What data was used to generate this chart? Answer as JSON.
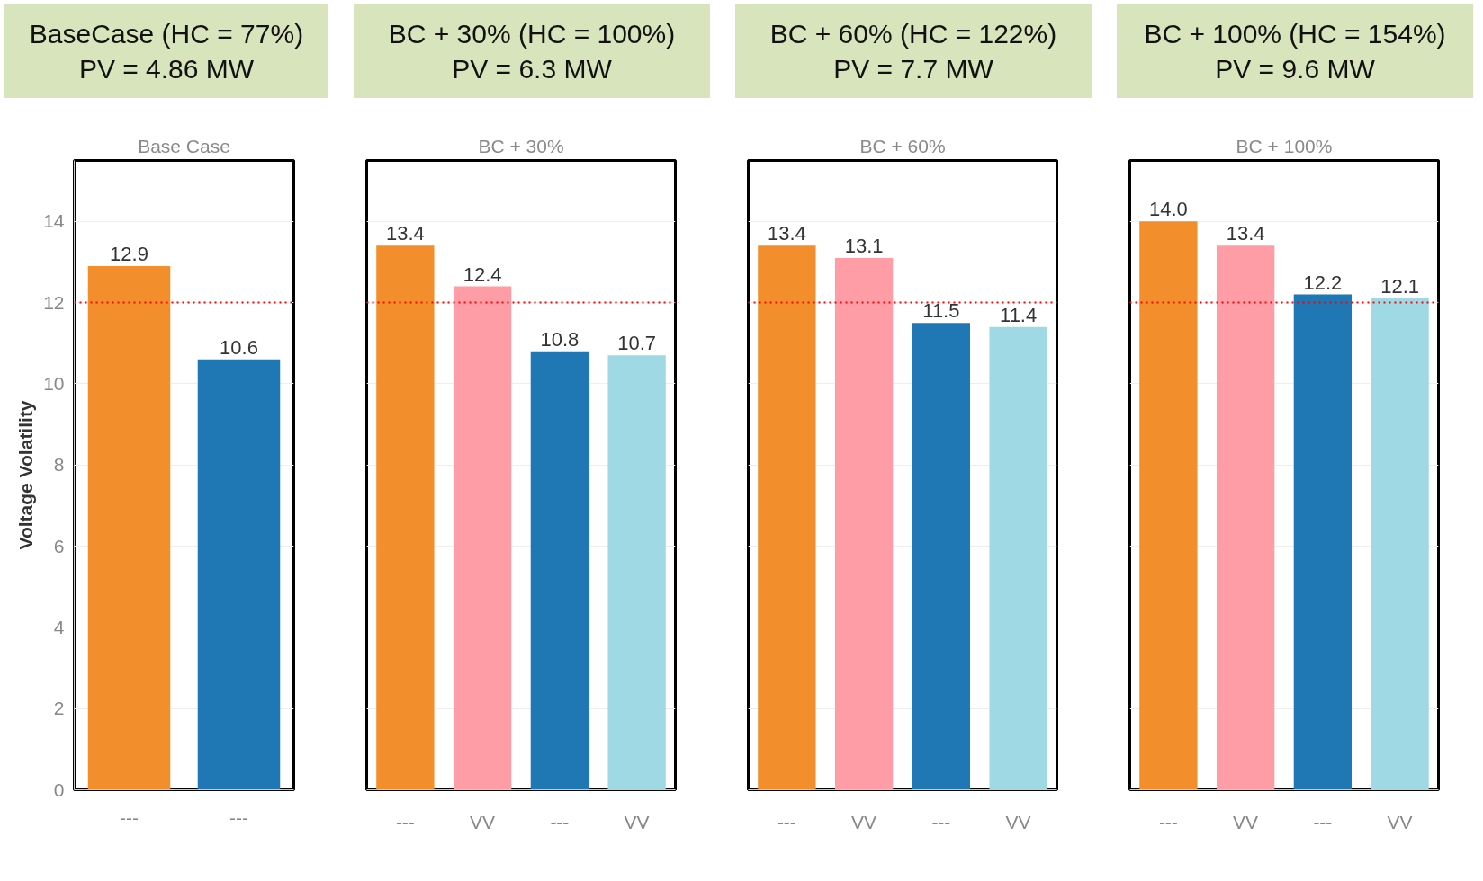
{
  "chart_data": [
    {
      "type": "bar",
      "title": "BaseCase (HC = 77%)",
      "subtitle": "PV = 4.86 MW",
      "annotations": [
        "Base Case"
      ],
      "ylabel": "Voltage Volatility",
      "categories": [
        "---",
        "---"
      ],
      "values": [
        12.9,
        10.6
      ],
      "value_labels": [
        "12.9",
        "10.6"
      ],
      "colors": [
        "#f28e2b",
        "#1f77b4"
      ],
      "ylim": [
        0,
        15.5
      ],
      "yticks": [
        0,
        2,
        4,
        6,
        8,
        10,
        12,
        14
      ],
      "grid": "y",
      "ref_lines": [
        {
          "axis": "y",
          "value": 12,
          "color": "#ff0000",
          "line_style": "dotted"
        }
      ]
    },
    {
      "type": "bar",
      "title": "BC + 30% (HC = 100%)",
      "subtitle": "PV = 6.3 MW",
      "annotations": [
        "BC + 30%"
      ],
      "categories": [
        "---",
        "VV",
        "---",
        "VV"
      ],
      "values": [
        13.4,
        12.4,
        10.8,
        10.7
      ],
      "value_labels": [
        "13.4",
        "12.4",
        "10.8",
        "10.7"
      ],
      "colors": [
        "#f28e2b",
        "#ff9da7",
        "#1f77b4",
        "#9fd9e4"
      ],
      "ylim": [
        0,
        15.5
      ],
      "yticks": [
        0,
        2,
        4,
        6,
        8,
        10,
        12,
        14
      ],
      "tick_labels": "x",
      "grid": "y",
      "ref_lines": [
        {
          "axis": "y",
          "value": 12,
          "color": "#ff0000",
          "line_style": "dotted"
        }
      ]
    },
    {
      "type": "bar",
      "title": "BC + 60% (HC = 122%)",
      "subtitle": "PV = 7.7 MW",
      "annotations": [
        "BC + 60%"
      ],
      "categories": [
        "---",
        "VV",
        "---",
        "VV"
      ],
      "values": [
        13.4,
        13.1,
        11.5,
        11.4
      ],
      "value_labels": [
        "13.4",
        "13.1",
        "11.5",
        "11.4"
      ],
      "colors": [
        "#f28e2b",
        "#ff9da7",
        "#1f77b4",
        "#9fd9e4"
      ],
      "ylim": [
        0,
        15.5
      ],
      "yticks": [
        0,
        2,
        4,
        6,
        8,
        10,
        12,
        14
      ],
      "tick_labels": "x",
      "grid": "y",
      "ref_lines": [
        {
          "axis": "y",
          "value": 12,
          "color": "#ff0000",
          "line_style": "dotted"
        }
      ]
    },
    {
      "type": "bar",
      "title": "BC + 100% (HC = 154%)",
      "subtitle": "PV = 9.6 MW",
      "annotations": [
        "BC + 100%"
      ],
      "categories": [
        "---",
        "VV",
        "---",
        "VV"
      ],
      "values": [
        14.0,
        13.4,
        12.2,
        12.1
      ],
      "value_labels": [
        "14.0",
        "13.4",
        "12.2",
        "12.1"
      ],
      "colors": [
        "#f28e2b",
        "#ff9da7",
        "#1f77b4",
        "#9fd9e4"
      ],
      "ylim": [
        0,
        15.5
      ],
      "yticks": [
        0,
        2,
        4,
        6,
        8,
        10,
        12,
        14
      ],
      "tick_labels": "x",
      "grid": "y",
      "ref_lines": [
        {
          "axis": "y",
          "value": 12,
          "color": "#ff0000",
          "line_style": "dotted"
        }
      ]
    }
  ]
}
